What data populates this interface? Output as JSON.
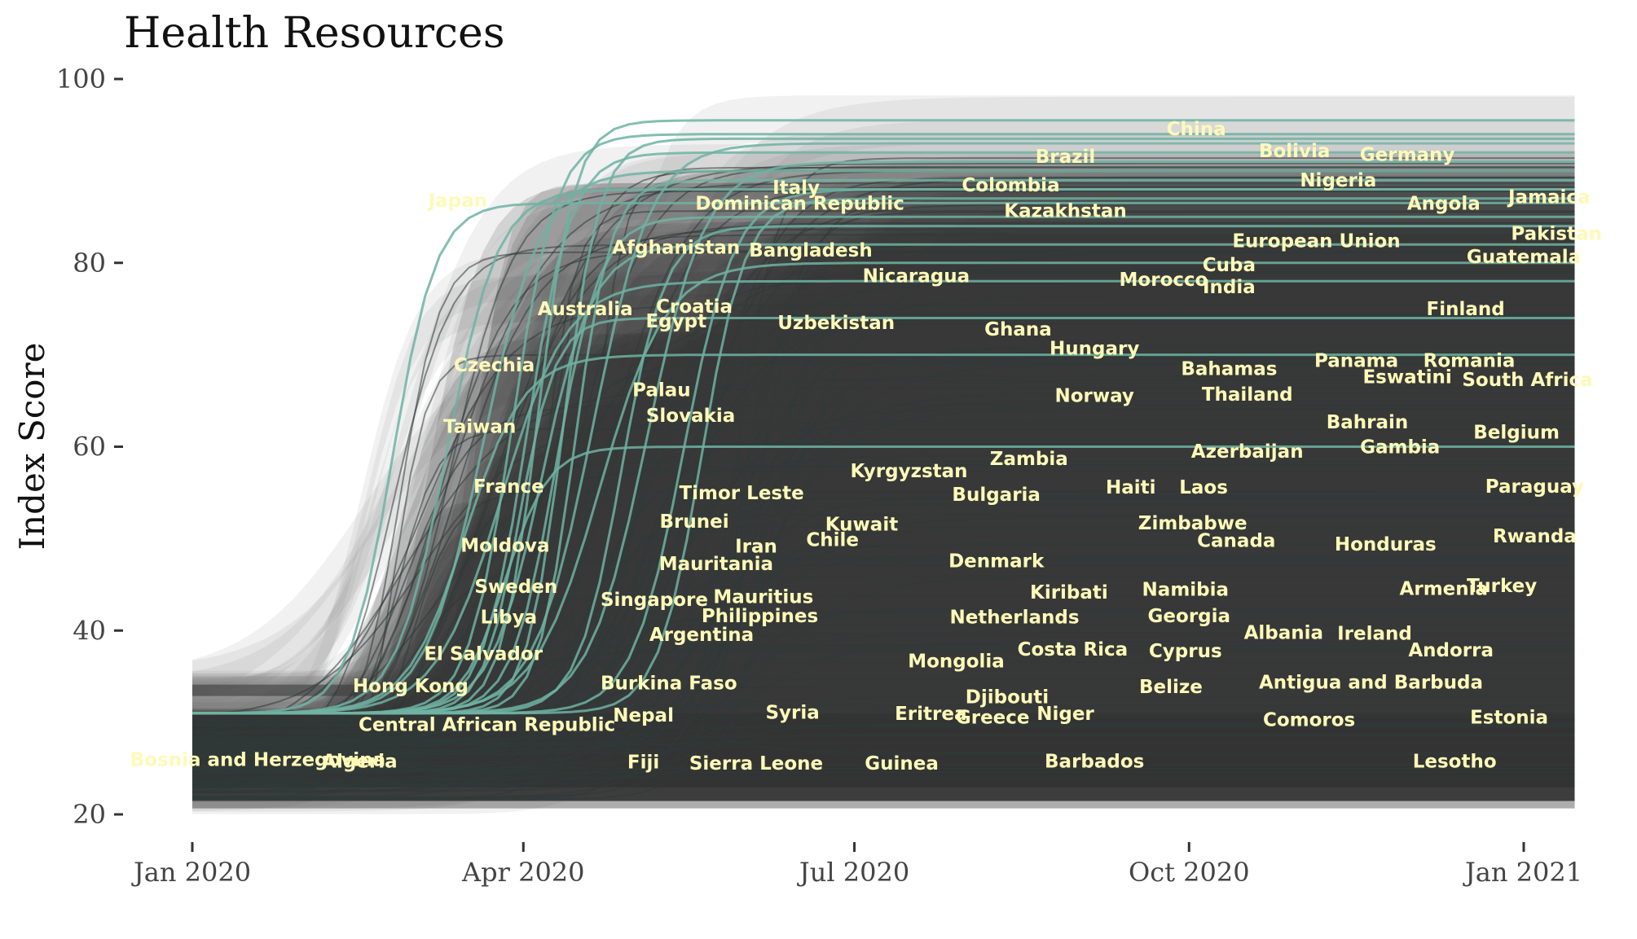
{
  "chart_data": {
    "type": "line",
    "title": "Health Resources",
    "xlabel": "",
    "ylabel": "Index Score",
    "x_ticks": [
      {
        "date": "2020-01-01",
        "label": "Jan 2020"
      },
      {
        "date": "2020-04-01",
        "label": "Apr 2020"
      },
      {
        "date": "2020-07-01",
        "label": "Jul 2020"
      },
      {
        "date": "2020-10-01",
        "label": "Oct 2020"
      },
      {
        "date": "2021-01-01",
        "label": "Jan 2021"
      }
    ],
    "xlim": [
      "2019-12-01",
      "2021-01-15"
    ],
    "y_ticks": [
      20,
      40,
      60,
      80,
      100
    ],
    "ylim": [
      20,
      100
    ],
    "grid": false,
    "legend": "none",
    "colors": {
      "band": "#3a3a3a",
      "highlight_line": "#6fb3a2",
      "label": "#fff9b8",
      "text": "#111111",
      "tick": "#444444"
    },
    "labels": [
      {
        "text": "China",
        "date": "2020-10-03",
        "y": 94.6
      },
      {
        "text": "Bolivia",
        "date": "2020-10-30",
        "y": 92.2
      },
      {
        "text": "Germany",
        "date": "2020-11-30",
        "y": 91.8
      },
      {
        "text": "Brazil",
        "date": "2020-08-28",
        "y": 91.6
      },
      {
        "text": "Nigeria",
        "date": "2020-11-11",
        "y": 89.0
      },
      {
        "text": "Italy",
        "date": "2020-06-15",
        "y": 88.2
      },
      {
        "text": "Colombia",
        "date": "2020-08-13",
        "y": 88.5
      },
      {
        "text": "Jamaica",
        "date": "2021-01-08",
        "y": 87.2
      },
      {
        "text": "Japan",
        "date": "2020-03-14",
        "y": 86.8
      },
      {
        "text": "Dominican Republic",
        "date": "2020-06-16",
        "y": 86.5
      },
      {
        "text": "Angola",
        "date": "2020-12-10",
        "y": 86.5
      },
      {
        "text": "Kazakhstan",
        "date": "2020-08-28",
        "y": 85.7
      },
      {
        "text": "Pakistan",
        "date": "2021-01-10",
        "y": 83.2
      },
      {
        "text": "European Union",
        "date": "2020-11-05",
        "y": 82.4
      },
      {
        "text": "Afghanistan",
        "date": "2020-05-13",
        "y": 81.7
      },
      {
        "text": "Bangladesh",
        "date": "2020-06-19",
        "y": 81.4
      },
      {
        "text": "Guatemala",
        "date": "2021-01-01",
        "y": 80.7
      },
      {
        "text": "Cuba",
        "date": "2020-10-12",
        "y": 79.8
      },
      {
        "text": "Nicaragua",
        "date": "2020-07-18",
        "y": 78.6
      },
      {
        "text": "Morocco",
        "date": "2020-09-24",
        "y": 78.2
      },
      {
        "text": "India",
        "date": "2020-10-12",
        "y": 77.4
      },
      {
        "text": "Croatia",
        "date": "2020-05-18",
        "y": 75.3
      },
      {
        "text": "Australia",
        "date": "2020-04-18",
        "y": 75.0
      },
      {
        "text": "Finland",
        "date": "2020-12-16",
        "y": 75.0
      },
      {
        "text": "Egypt",
        "date": "2020-05-13",
        "y": 73.7
      },
      {
        "text": "Uzbekistan",
        "date": "2020-06-26",
        "y": 73.5
      },
      {
        "text": "Ghana",
        "date": "2020-08-15",
        "y": 72.8
      },
      {
        "text": "Hungary",
        "date": "2020-09-05",
        "y": 70.7
      },
      {
        "text": "Panama",
        "date": "2020-11-16",
        "y": 69.4
      },
      {
        "text": "Romania",
        "date": "2020-12-17",
        "y": 69.4
      },
      {
        "text": "Czechia",
        "date": "2020-03-24",
        "y": 68.9
      },
      {
        "text": "Bahamas",
        "date": "2020-10-12",
        "y": 68.5
      },
      {
        "text": "Eswatini",
        "date": "2020-11-30",
        "y": 67.6
      },
      {
        "text": "South Africa",
        "date": "2021-01-02",
        "y": 67.3
      },
      {
        "text": "Palau",
        "date": "2020-05-09",
        "y": 66.2
      },
      {
        "text": "Norway",
        "date": "2020-09-05",
        "y": 65.6
      },
      {
        "text": "Thailand",
        "date": "2020-10-17",
        "y": 65.7
      },
      {
        "text": "Slovakia",
        "date": "2020-05-17",
        "y": 63.4
      },
      {
        "text": "Taiwan",
        "date": "2020-03-20",
        "y": 62.2
      },
      {
        "text": "Bahrain",
        "date": "2020-11-19",
        "y": 62.7
      },
      {
        "text": "Belgium",
        "date": "2020-12-30",
        "y": 61.6
      },
      {
        "text": "Gambia",
        "date": "2020-11-28",
        "y": 60.0
      },
      {
        "text": "Azerbaijan",
        "date": "2020-10-17",
        "y": 59.5
      },
      {
        "text": "Zambia",
        "date": "2020-08-18",
        "y": 58.7
      },
      {
        "text": "Kyrgyzstan",
        "date": "2020-07-16",
        "y": 57.4
      },
      {
        "text": "France",
        "date": "2020-03-28",
        "y": 55.7
      },
      {
        "text": "Haiti",
        "date": "2020-09-15",
        "y": 55.6
      },
      {
        "text": "Laos",
        "date": "2020-10-05",
        "y": 55.6
      },
      {
        "text": "Paraguay",
        "date": "2021-01-04",
        "y": 55.7
      },
      {
        "text": "Timor Leste",
        "date": "2020-05-31",
        "y": 55.0
      },
      {
        "text": "Bulgaria",
        "date": "2020-08-09",
        "y": 54.8
      },
      {
        "text": "Brunei",
        "date": "2020-05-18",
        "y": 51.9
      },
      {
        "text": "Kuwait",
        "date": "2020-07-03",
        "y": 51.6
      },
      {
        "text": "Zimbabwe",
        "date": "2020-10-02",
        "y": 51.7
      },
      {
        "text": "Chile",
        "date": "2020-06-25",
        "y": 49.9
      },
      {
        "text": "Canada",
        "date": "2020-10-14",
        "y": 49.8
      },
      {
        "text": "Rwanda",
        "date": "2021-01-04",
        "y": 50.3
      },
      {
        "text": "Moldova",
        "date": "2020-03-27",
        "y": 49.3
      },
      {
        "text": "Iran",
        "date": "2020-06-04",
        "y": 49.2
      },
      {
        "text": "Honduras",
        "date": "2020-11-24",
        "y": 49.4
      },
      {
        "text": "Denmark",
        "date": "2020-08-09",
        "y": 47.6
      },
      {
        "text": "Mauritania",
        "date": "2020-05-24",
        "y": 47.3
      },
      {
        "text": "Sweden",
        "date": "2020-03-30",
        "y": 44.8
      },
      {
        "text": "Kiribati",
        "date": "2020-08-29",
        "y": 44.2
      },
      {
        "text": "Namibia",
        "date": "2020-09-30",
        "y": 44.5
      },
      {
        "text": "Armenia",
        "date": "2020-12-10",
        "y": 44.6
      },
      {
        "text": "Turkey",
        "date": "2020-12-26",
        "y": 44.9
      },
      {
        "text": "Mauritius",
        "date": "2020-06-06",
        "y": 43.7
      },
      {
        "text": "Singapore",
        "date": "2020-05-07",
        "y": 43.4
      },
      {
        "text": "Libya",
        "date": "2020-03-28",
        "y": 41.5
      },
      {
        "text": "Philippines",
        "date": "2020-06-05",
        "y": 41.6
      },
      {
        "text": "Netherlands",
        "date": "2020-08-14",
        "y": 41.5
      },
      {
        "text": "Georgia",
        "date": "2020-10-01",
        "y": 41.6
      },
      {
        "text": "Argentina",
        "date": "2020-05-20",
        "y": 39.6
      },
      {
        "text": "Albania",
        "date": "2020-10-27",
        "y": 39.8
      },
      {
        "text": "Ireland",
        "date": "2020-11-21",
        "y": 39.7
      },
      {
        "text": "El Salvador",
        "date": "2020-03-21",
        "y": 37.5
      },
      {
        "text": "Costa Rica",
        "date": "2020-08-30",
        "y": 38.0
      },
      {
        "text": "Cyprus",
        "date": "2020-09-30",
        "y": 37.8
      },
      {
        "text": "Andorra",
        "date": "2020-12-12",
        "y": 37.9
      },
      {
        "text": "Mongolia",
        "date": "2020-07-29",
        "y": 36.7
      },
      {
        "text": "Hong Kong",
        "date": "2020-03-01",
        "y": 34.0
      },
      {
        "text": "Burkina Faso",
        "date": "2020-05-11",
        "y": 34.3
      },
      {
        "text": "Antigua and Barbuda",
        "date": "2020-11-20",
        "y": 34.4
      },
      {
        "text": "Belize",
        "date": "2020-09-26",
        "y": 33.9
      },
      {
        "text": "Djibouti",
        "date": "2020-08-12",
        "y": 32.8
      },
      {
        "text": "Nepal",
        "date": "2020-05-04",
        "y": 30.8
      },
      {
        "text": "Syria",
        "date": "2020-06-14",
        "y": 31.1
      },
      {
        "text": "Eritrea",
        "date": "2020-07-22",
        "y": 31.0
      },
      {
        "text": "Niger",
        "date": "2020-08-28",
        "y": 31.0
      },
      {
        "text": "Greece",
        "date": "2020-08-08",
        "y": 30.6
      },
      {
        "text": "Comoros",
        "date": "2020-11-03",
        "y": 30.3
      },
      {
        "text": "Estonia",
        "date": "2020-12-28",
        "y": 30.6
      },
      {
        "text": "Central African Republic",
        "date": "2020-03-22",
        "y": 29.8
      },
      {
        "text": "Bosnia and Herzegovina",
        "date": "2020-01-19",
        "y": 26.0
      },
      {
        "text": "Algeria",
        "date": "2020-02-16",
        "y": 25.8
      },
      {
        "text": "Fiji",
        "date": "2020-05-04",
        "y": 25.7
      },
      {
        "text": "Sierra Leone",
        "date": "2020-06-04",
        "y": 25.6
      },
      {
        "text": "Guinea",
        "date": "2020-07-14",
        "y": 25.6
      },
      {
        "text": "Barbados",
        "date": "2020-09-05",
        "y": 25.8
      },
      {
        "text": "Lesotho",
        "date": "2020-12-13",
        "y": 25.8
      }
    ]
  }
}
